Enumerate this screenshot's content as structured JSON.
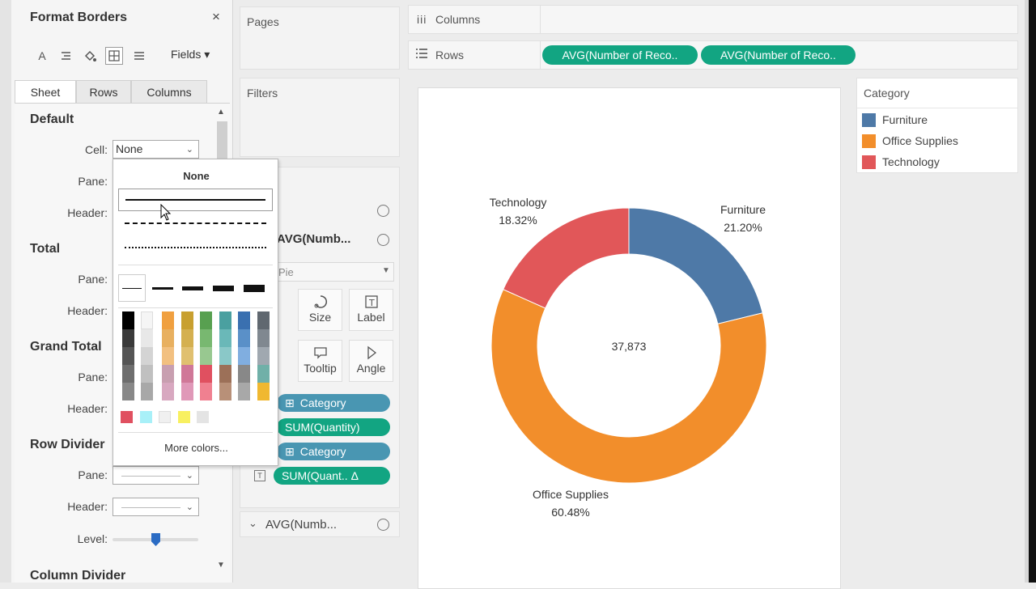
{
  "format_panel": {
    "title": "Format Borders",
    "close_glyph": "×",
    "toolbar_icons": [
      "font-icon",
      "align-icon",
      "shading-icon",
      "borders-icon",
      "lines-icon"
    ],
    "fields_label": "Fields ▾",
    "tabs": [
      {
        "label": "Sheet",
        "active": true
      },
      {
        "label": "Rows",
        "active": false
      },
      {
        "label": "Columns",
        "active": false
      }
    ],
    "sections": {
      "default": {
        "title": "Default",
        "cell_label": "Cell:",
        "cell_value": "None",
        "pane_label": "Pane:",
        "header_label": "Header:"
      },
      "total": {
        "title": "Total",
        "pane_label": "Pane:",
        "header_label": "Header:"
      },
      "grand_total": {
        "title": "Grand Total",
        "pane_label": "Pane:",
        "header_label": "Header:"
      },
      "row_divider": {
        "title": "Row Divider",
        "pane_label": "Pane:",
        "header_label": "Header:",
        "level_label": "Level:"
      },
      "column_divider": {
        "title": "Column Divider"
      }
    }
  },
  "popup": {
    "none_label": "None",
    "more_colors_label": "More colors...",
    "colors": {
      "gray": [
        "#000000",
        "#3a3a3a",
        "#555555",
        "#6e6e6e",
        "#888888"
      ],
      "light_gray": [
        "#f5f5f5",
        "#e8e8e8",
        "#d4d4d4",
        "#c0c0c0",
        "#a8a8a8"
      ],
      "columns": [
        [
          "#f0a040",
          "#e8b060",
          "#f2c080",
          "#c89fb0",
          "#d8a8c0"
        ],
        [
          "#c8a030",
          "#d4b050",
          "#e0c070",
          "#d07898",
          "#e098b8"
        ],
        [
          "#58a050",
          "#78b870",
          "#98c890",
          "#e05060",
          "#f08090"
        ],
        [
          "#4aa0a0",
          "#6ab8b8",
          "#8ac8c8",
          "#9c7058",
          "#b89078"
        ],
        [
          "#3a70b0",
          "#5a90c8",
          "#80aee0",
          "#888888",
          "#a8a8a8"
        ],
        [
          "#606870",
          "#808890",
          "#a0a8b0",
          "#70b0a8",
          "#f0b830"
        ]
      ],
      "extra": [
        "#e05060",
        "#a8f0f8",
        "#f0f0f0",
        "#f8f060",
        "#e4e4e4"
      ]
    }
  },
  "cards": {
    "pages": "Pages",
    "filters": "Filters",
    "marks_type": "Pie",
    "avg_label": "AVG(Numb...",
    "size_label": "Size",
    "label_label": "Label",
    "tooltip_label": "Tooltip",
    "angle_label": "Angle",
    "pills": [
      "Category",
      "SUM(Quantity)",
      "Category",
      "SUM(Quant.. Δ"
    ],
    "avg_bottom": "AVG(Numb..."
  },
  "shelves": {
    "columns_label": "Columns",
    "rows_label": "Rows",
    "rows_pills": [
      "AVG(Number of Reco..",
      "AVG(Number of Reco.."
    ]
  },
  "chart_data": {
    "type": "pie",
    "donut": true,
    "categories": [
      "Furniture",
      "Office Supplies",
      "Technology"
    ],
    "values": [
      21.2,
      60.48,
      18.32
    ],
    "value_labels": [
      "21.20%",
      "60.48%",
      "18.32%"
    ],
    "colors": [
      "#4e79a7",
      "#f28e2b",
      "#e15759"
    ],
    "center_label": "37,873"
  },
  "legend": {
    "title": "Category",
    "items": [
      {
        "label": "Furniture",
        "color": "#4e79a7"
      },
      {
        "label": "Office Supplies",
        "color": "#f28e2b"
      },
      {
        "label": "Technology",
        "color": "#e15759"
      }
    ]
  }
}
